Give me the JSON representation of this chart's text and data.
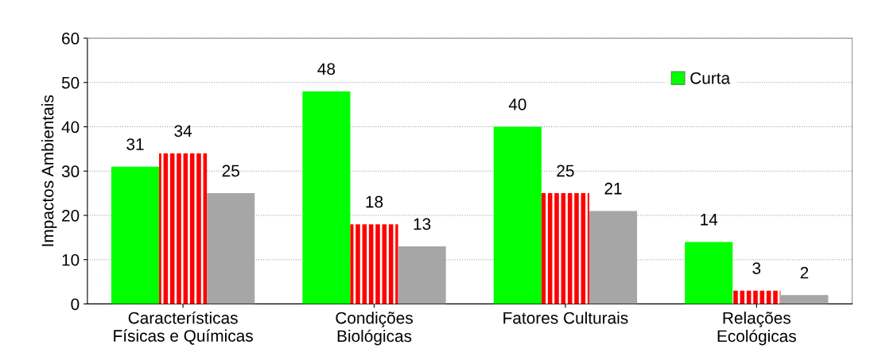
{
  "chart_data": {
    "type": "bar",
    "ylabel": "Impactos Ambientais",
    "categories": [
      "Características\nFísicas e Químicas",
      "Condições\nBiológicas",
      "Fatores Culturais",
      "Relações\nEcológicas"
    ],
    "series": [
      {
        "name": "Curta",
        "color": "#00ff00",
        "values": [
          31,
          48,
          40,
          14
        ]
      },
      {
        "color": "#ff0000",
        "values": [
          34,
          18,
          25,
          3
        ]
      },
      {
        "color": "#a6a6a6",
        "values": [
          25,
          13,
          21,
          2
        ]
      }
    ],
    "ylim": [
      0,
      60
    ],
    "yticks": [
      0,
      10,
      20,
      30,
      40,
      50,
      60
    ],
    "grid": "y",
    "legend": "top right",
    "data_labels": true
  }
}
